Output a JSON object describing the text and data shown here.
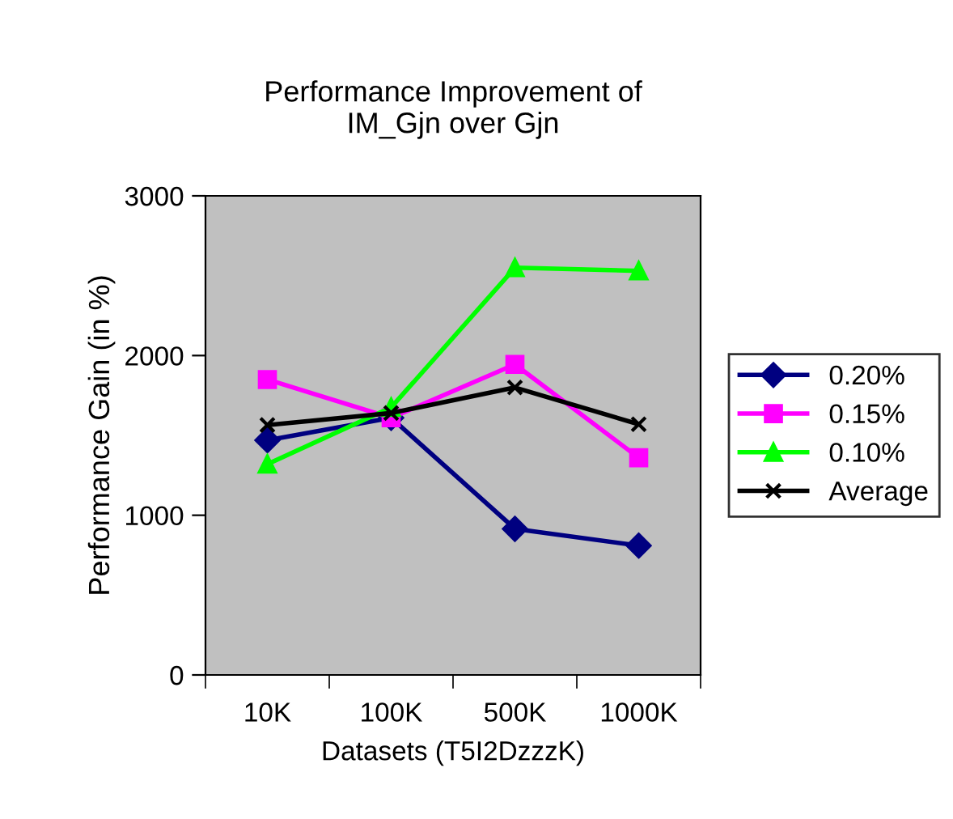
{
  "chart_data": {
    "type": "line",
    "title": "Performance Improvement of\nIM_Gjn over Gjn",
    "xlabel": "Datasets (T5I2DzzzK)",
    "ylabel": "Performance Gain (in %)",
    "categories": [
      "10K",
      "100K",
      "500K",
      "1000K"
    ],
    "series": [
      {
        "name": "0.20%",
        "color": "#000080",
        "marker": "diamond",
        "values": [
          1470,
          1610,
          915,
          810
        ]
      },
      {
        "name": "0.15%",
        "color": "#ff00ff",
        "marker": "square",
        "values": [
          1850,
          1610,
          1945,
          1360
        ]
      },
      {
        "name": "0.10%",
        "color": "#00ff00",
        "marker": "triangle",
        "values": [
          1320,
          1675,
          2550,
          2530
        ]
      },
      {
        "name": "Average",
        "color": "#000000",
        "marker": "cross",
        "values": [
          1565,
          1640,
          1800,
          1570
        ]
      }
    ],
    "ylim": [
      0,
      3000
    ],
    "yticks": [
      0,
      1000,
      2000,
      3000
    ],
    "grid": false,
    "legend": "right",
    "line_style": "solid"
  }
}
